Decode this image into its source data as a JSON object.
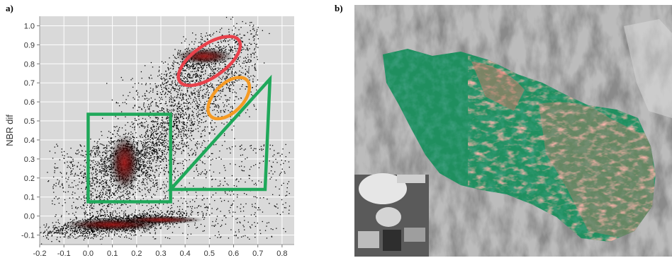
{
  "panel_a_label": "a)",
  "panel_b_label": "b)",
  "chart_data": {
    "type": "scatter",
    "title": "",
    "xlabel": "",
    "ylabel": "NBR dif",
    "xlim": [
      -0.2,
      0.85
    ],
    "ylim": [
      -0.15,
      1.05
    ],
    "x_ticks": [
      "-0.2",
      "-0.1",
      "0.0",
      "0.1",
      "0.2",
      "0.3",
      "0.4",
      "0.5",
      "0.6",
      "0.7",
      "0.8"
    ],
    "x_tick_values": [
      -0.2,
      -0.1,
      0.0,
      0.1,
      0.2,
      0.3,
      0.4,
      0.5,
      0.6,
      0.7,
      0.8
    ],
    "y_ticks": [
      "-0.1",
      "0.0",
      "0.1",
      "0.2",
      "0.3",
      "0.4",
      "0.5",
      "0.6",
      "0.7",
      "0.8",
      "0.9",
      "1.0"
    ],
    "y_tick_values": [
      -0.1,
      0.0,
      0.1,
      0.2,
      0.3,
      0.4,
      0.5,
      0.6,
      0.7,
      0.8,
      0.9,
      1.0
    ],
    "grid": true,
    "density_clusters": [
      {
        "center": [
          0.12,
          -0.04
        ],
        "spread": [
          0.16,
          0.025
        ],
        "rotation_deg": 8,
        "weight": 1.0
      },
      {
        "center": [
          0.14,
          0.3
        ],
        "spread": [
          0.07,
          0.12
        ],
        "rotation_deg": -55,
        "weight": 0.8
      },
      {
        "center": [
          0.45,
          0.8
        ],
        "spread": [
          0.13,
          0.05
        ],
        "rotation_deg": 40,
        "weight": 0.6
      },
      {
        "center": [
          0.35,
          0.55
        ],
        "spread": [
          0.1,
          0.1
        ],
        "rotation_deg": 45,
        "weight": 0.4
      }
    ],
    "annotations": [
      {
        "shape": "ellipse",
        "color": "#e8414b",
        "center": [
          0.5,
          0.815
        ],
        "radii": [
          0.24,
          0.085
        ],
        "rotation_deg": 35
      },
      {
        "shape": "ellipse",
        "color": "#f59a23",
        "center": [
          0.58,
          0.62
        ],
        "radii": [
          0.17,
          0.075
        ],
        "rotation_deg": 45
      },
      {
        "shape": "rectangle",
        "color": "#1fa85a",
        "x_range": [
          0.0,
          0.34
        ],
        "y_range": [
          0.075,
          0.535
        ]
      },
      {
        "shape": "polygon",
        "color": "#1fa85a",
        "points": [
          [
            0.34,
            0.14
          ],
          [
            0.73,
            0.14
          ],
          [
            0.75,
            0.72
          ]
        ]
      }
    ],
    "colors": {
      "background": "#d9d9d9",
      "grid": "#ffffff",
      "points": "#000000",
      "density_core": "#8b1a1a"
    }
  },
  "map_image": {
    "description_colors": {
      "unburned_green": "#1f8f5f",
      "high_severity": "#e8766a",
      "terrain_gray": "#9a9a9a"
    }
  }
}
